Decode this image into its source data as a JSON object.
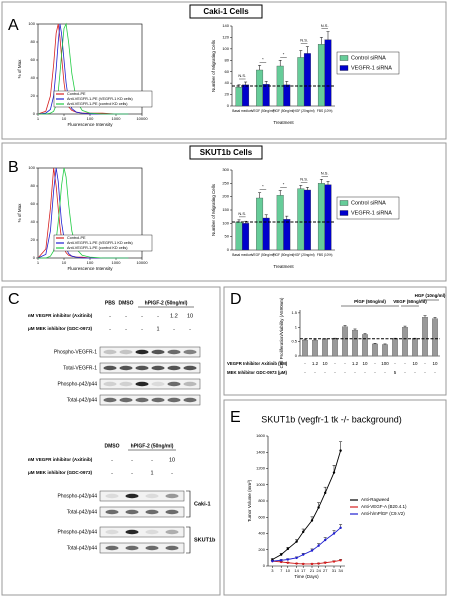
{
  "figure": {
    "panel_letters": [
      "A",
      "B",
      "C",
      "D",
      "E"
    ],
    "cell_titles": [
      "Caki-1 Cells",
      "SKUT1b Cells"
    ],
    "blot_top": {
      "lanes": [
        "PBS",
        "DMSO"
      ],
      "treatment": "hPlGF-2 (50ng/ml)",
      "inhibitors": [
        {
          "label": "nM VEGFR inhibitor (Axitinib)",
          "values": [
            "-",
            "-",
            "-",
            "-",
            "1.2",
            "10"
          ]
        },
        {
          "label": "μM MEK inhibitor (GDC-0973)",
          "values": [
            "-",
            "-",
            "-",
            "1",
            "-",
            "-"
          ]
        }
      ],
      "rows": [
        "Phospho-VEGFR-1",
        "Total-VEGFR-1",
        "Phospho-p42/p44",
        "Total-p42/p44"
      ]
    },
    "blot_bottom": {
      "lanes": [
        "DMSO"
      ],
      "treatment": "hPlGF-2 (50ng/ml)",
      "inhibitors": [
        {
          "label": "nM VEGFR inhibitor (Axitinib)",
          "values": [
            "-",
            "-",
            "-",
            "10"
          ]
        },
        {
          "label": "μM MEK inhibitor (GDC-0973)",
          "values": [
            "-",
            "-",
            "1",
            "-"
          ]
        }
      ],
      "groups": [
        {
          "name": "Caki-1",
          "rows": [
            "Phospho-p42/p44",
            "Total-p42/p44"
          ]
        },
        {
          "name": "SKUT1b",
          "rows": [
            "Phospho-p42/p44",
            "Total-p42/p44"
          ]
        }
      ]
    }
  },
  "chart_data": [
    {
      "type": "line",
      "xscale": "log",
      "xlabel": "Fluorescence Intensity",
      "ylabel": "% of Max",
      "x": [
        1,
        2,
        3,
        4,
        5,
        6,
        7,
        8,
        10,
        12,
        15,
        20,
        30,
        50,
        100,
        300,
        1000,
        3000
      ],
      "xlim": [
        1,
        10000
      ],
      "xticks": [
        1,
        10,
        100,
        1000,
        10000
      ],
      "ylim": [
        0,
        100
      ],
      "yticks": [
        0,
        20,
        40,
        60,
        80,
        100
      ],
      "series": [
        {
          "name": "Control-PE",
          "color": "#d62020",
          "values": [
            0,
            3,
            20,
            55,
            90,
            100,
            85,
            65,
            35,
            18,
            8,
            4,
            2,
            1,
            1,
            1,
            0,
            0
          ]
        },
        {
          "name": "Anti-VEGFR-1-PE (VEGFR-1 KD cells)",
          "color": "#1f1fd0",
          "values": [
            0,
            1,
            5,
            20,
            50,
            80,
            100,
            90,
            60,
            35,
            15,
            6,
            2,
            1,
            0,
            0,
            0,
            0
          ]
        },
        {
          "name": "Anti-VEGFR-1-PE (control KD cells)",
          "color": "#22cc44",
          "values": [
            0,
            0,
            1,
            3,
            10,
            25,
            45,
            65,
            95,
            100,
            80,
            45,
            15,
            4,
            1,
            0,
            0,
            0
          ]
        }
      ]
    },
    {
      "type": "bar",
      "xlabel": "Treatment",
      "ylabel": "Number of Migrating Cells",
      "categories": [
        "Basal medium",
        "VEGF (50ng/ml)",
        "PlGF (50ng/ml)",
        "HGF (20ng/ml)",
        "FBS (10%)"
      ],
      "ylim": [
        0,
        140
      ],
      "yticks": [
        0,
        20,
        40,
        60,
        80,
        100,
        120,
        140
      ],
      "baseline": 35,
      "annotations": [
        "N.S.",
        "*",
        "*",
        "N.S.",
        "N.S."
      ],
      "series": [
        {
          "name": "Control siRNA",
          "color": "#66cc99",
          "values": [
            33,
            63,
            70,
            85,
            108
          ],
          "errors": [
            4,
            8,
            10,
            12,
            12
          ]
        },
        {
          "name": "VEGFR-1 siRNA",
          "color": "#0000cc",
          "values": [
            37,
            38,
            37,
            92,
            116
          ],
          "errors": [
            5,
            5,
            6,
            12,
            14
          ]
        }
      ]
    },
    {
      "type": "line",
      "xscale": "log",
      "xlabel": "Fluorescence Intensity",
      "ylabel": "% of Max",
      "x": [
        1,
        2,
        3,
        4,
        5,
        6,
        7,
        8,
        10,
        12,
        15,
        20,
        30,
        50,
        100,
        300,
        1000,
        3000
      ],
      "xlim": [
        1,
        10000
      ],
      "xticks": [
        1,
        10,
        100,
        1000,
        10000
      ],
      "ylim": [
        0,
        100
      ],
      "yticks": [
        0,
        20,
        40,
        60,
        80,
        100
      ],
      "series": [
        {
          "name": "Control-PE",
          "color": "#d62020",
          "values": [
            0,
            10,
            55,
            100,
            80,
            55,
            35,
            22,
            12,
            6,
            3,
            2,
            1,
            1,
            0,
            0,
            0,
            0
          ]
        },
        {
          "name": "Anti-VEGFR-1-PE (VEGFR-1 KD cells)",
          "color": "#1f1fd0",
          "values": [
            0,
            4,
            30,
            75,
            100,
            85,
            60,
            40,
            22,
            12,
            5,
            2,
            1,
            0,
            0,
            0,
            0,
            0
          ]
        },
        {
          "name": "Anti-VEGFR-1-PE (control KD cells)",
          "color": "#22cc44",
          "values": [
            0,
            0,
            2,
            8,
            20,
            40,
            60,
            80,
            100,
            90,
            60,
            30,
            10,
            3,
            1,
            0,
            0,
            0
          ]
        }
      ]
    },
    {
      "type": "bar",
      "xlabel": "Treatment",
      "ylabel": "Number of Migrating Cells",
      "categories": [
        "Basal medium",
        "VEGF (50ng/ml)",
        "PlGF (50ng/ml)",
        "HGF (20ng/ml)",
        "FBS (10%)"
      ],
      "ylim": [
        0,
        300
      ],
      "yticks": [
        0,
        50,
        100,
        150,
        200,
        250,
        300
      ],
      "baseline": 105,
      "annotations": [
        "N.S.",
        "*",
        "*",
        "N.S.",
        "N.S."
      ],
      "series": [
        {
          "name": "Control siRNA",
          "color": "#66cc99",
          "values": [
            105,
            195,
            205,
            230,
            250
          ],
          "errors": [
            8,
            20,
            18,
            12,
            15
          ]
        },
        {
          "name": "VEGFR-1 siRNA",
          "color": "#0000cc",
          "values": [
            100,
            120,
            115,
            225,
            245
          ],
          "errors": [
            8,
            12,
            12,
            10,
            12
          ]
        }
      ]
    },
    {
      "type": "bar",
      "ylabel": "Cell Proliferation/Viability (A590nm)",
      "ylim": [
        0,
        1.6
      ],
      "yticks": [
        0,
        0.5,
        1,
        1.5
      ],
      "color": "#999999",
      "baseline": 0.6,
      "values": [
        0.55,
        0.55,
        0.58,
        0.6,
        1.02,
        0.9,
        0.75,
        0.42,
        0.4,
        0.6,
        1.0,
        0.6,
        1.35,
        1.3
      ],
      "errors": [
        0.02,
        0.02,
        0.02,
        0.02,
        0.04,
        0.04,
        0.03,
        0.02,
        0.02,
        0.02,
        0.04,
        0.02,
        0.05,
        0.04
      ],
      "groups": [
        "PlGF (50ng/ml)",
        "VEGF (50ng/ml)",
        "HGF (10ng/ml)"
      ],
      "row_labels": [
        "VEGFR Inhibitor Axitinib (nM)",
        "MEK Inhibitor GDC-0973 (μM)"
      ],
      "rows": [
        [
          "-",
          "1.2",
          "10",
          "-",
          "-",
          "1.2",
          "10",
          "-",
          "100",
          "-",
          "-",
          "10",
          "-",
          "10"
        ],
        [
          "-",
          "-",
          "-",
          "-",
          "-",
          "-",
          "-",
          "-",
          "-",
          "5",
          "-",
          "-",
          "-",
          "-"
        ]
      ]
    },
    {
      "type": "line",
      "markers": true,
      "title": "SKUT1b (vegfr-1 tk -/- background)",
      "xlabel": "Time (Days)",
      "ylabel": "Tumor Volume (mm³)",
      "x": [
        3,
        7,
        10,
        14,
        17,
        21,
        24,
        27,
        31,
        34
      ],
      "xlim": [
        1,
        36
      ],
      "xticks": [
        3,
        7,
        10,
        14,
        17,
        21,
        24,
        27,
        31,
        34
      ],
      "ylim": [
        0,
        1600
      ],
      "yticks": [
        0,
        200,
        400,
        600,
        800,
        1000,
        1200,
        1400,
        1600
      ],
      "series": [
        {
          "name": "Anti-Ragweed",
          "color": "#000000",
          "values": [
            80,
            140,
            210,
            300,
            420,
            560,
            720,
            900,
            1150,
            1420
          ],
          "errors": [
            10,
            15,
            20,
            25,
            35,
            45,
            60,
            70,
            90,
            110
          ]
        },
        {
          "name": "Anti-VEGF-A (B20.4.1)",
          "color": "#d62020",
          "values": [
            60,
            50,
            40,
            30,
            25,
            25,
            30,
            40,
            55,
            70
          ],
          "errors": [
            8,
            8,
            6,
            5,
            5,
            5,
            6,
            8,
            10,
            12
          ]
        },
        {
          "name": "Anti-h/mPlGF (C9.V2)",
          "color": "#1f1fd0",
          "values": [
            60,
            70,
            80,
            100,
            140,
            190,
            250,
            320,
            400,
            470
          ],
          "errors": [
            8,
            10,
            10,
            12,
            15,
            20,
            25,
            30,
            35,
            40
          ]
        }
      ]
    }
  ]
}
